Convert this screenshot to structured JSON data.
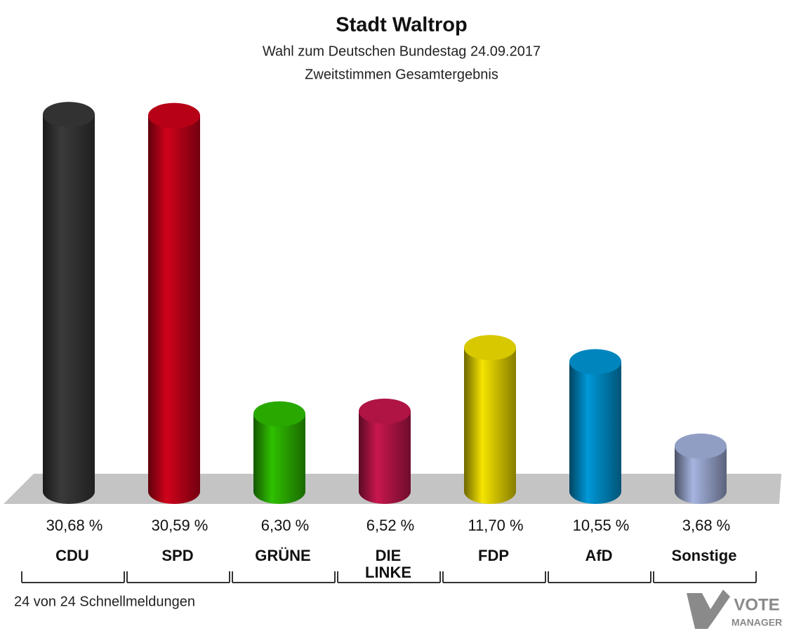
{
  "title": "Stadt Waltrop",
  "subtitle": "Wahl zum Deutschen Bundestag 24.09.2017",
  "subtitle2": "Zweitstimmen Gesamtergebnis",
  "chart_data": {
    "type": "bar",
    "categories": [
      "CDU",
      "SPD",
      "GRÜNE",
      "DIE\nLINKE",
      "FDP",
      "AfD",
      "Sonstige"
    ],
    "values": [
      30.68,
      30.59,
      6.3,
      6.52,
      11.7,
      10.55,
      3.68
    ],
    "value_labels": [
      "30,68 %",
      "30,59 %",
      "6,30 %",
      "6,52 %",
      "11,70 %",
      "10,55 %",
      "3,68 %"
    ],
    "colors": [
      "#3a3a3a",
      "#d0021b",
      "#2fc000",
      "#c8174f",
      "#f5e400",
      "#0098d8",
      "#a6b4e0"
    ]
  },
  "footer": "24 von 24 Schnellmeldungen",
  "logo": [
    "VOTE",
    "MANAGER"
  ]
}
